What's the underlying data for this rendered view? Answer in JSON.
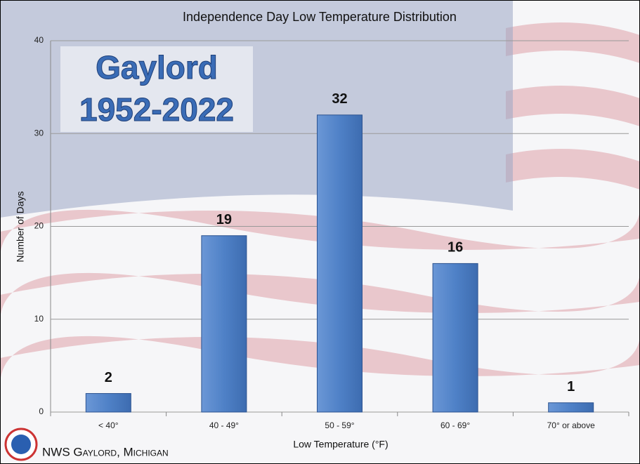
{
  "chart_data": {
    "type": "bar",
    "title": "Independence Day Low Temperature Distribution",
    "annotation": [
      "Gaylord",
      "1952-2022"
    ],
    "xlabel": "Low Temperature (°F)",
    "ylabel": "Number of Days",
    "footer": "NWS Gaylord, Michigan",
    "categories": [
      "< 40°",
      "40 - 49°",
      "50 - 59°",
      "60 - 69°",
      "70° or above"
    ],
    "values": [
      2,
      19,
      32,
      16,
      1
    ],
    "color": "#4f81c7",
    "ylim": [
      0,
      40
    ],
    "yticks": [
      0,
      10,
      20,
      30,
      40
    ],
    "grid": true
  }
}
